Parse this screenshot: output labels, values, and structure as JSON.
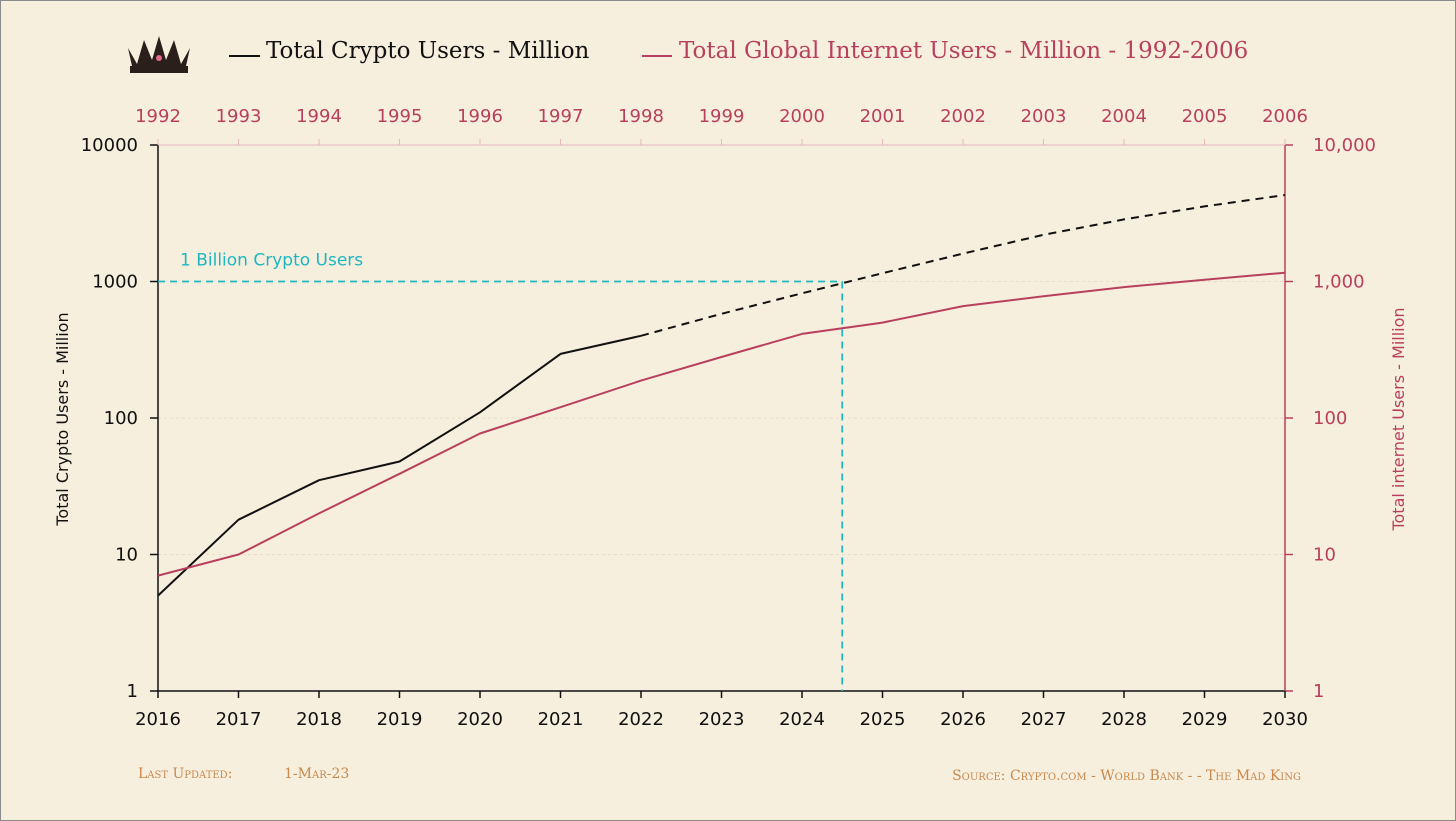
{
  "legend": {
    "crypto_label": "Total Crypto Users - Million",
    "internet_label": "Total Global Internet Users - Million - 1992-2006"
  },
  "footer": {
    "updated_label": "Last Updated:",
    "updated_value": "1-Mar-23",
    "source": "Source: Crypto.com - World Bank -  - The Mad King"
  },
  "annotation": {
    "label": "1 Billion Crypto Users",
    "threshold": 1000,
    "x": 2024.5
  },
  "colors": {
    "crypto": "#111111",
    "internet": "#b8405e",
    "annotation": "#1fb6c1",
    "footer": "#c8884e",
    "background": "#f7efdd"
  },
  "logo": {
    "icon": "crown-icon"
  },
  "chart_data": {
    "type": "line",
    "scale": "log",
    "grid": true,
    "x_bottom": {
      "min": 2016,
      "max": 2030,
      "ticks": [
        "2016",
        "2017",
        "2018",
        "2019",
        "2020",
        "2021",
        "2022",
        "2023",
        "2024",
        "2025",
        "2026",
        "2027",
        "2028",
        "2029",
        "2030"
      ]
    },
    "x_top": {
      "min": 1992,
      "max": 2006,
      "ticks": [
        "1992",
        "1993",
        "1994",
        "1995",
        "1996",
        "1997",
        "1998",
        "1999",
        "2000",
        "2001",
        "2002",
        "2003",
        "2004",
        "2005",
        "2006"
      ]
    },
    "y_left": {
      "label": "Total Crypto Users - Million",
      "ylim": [
        1,
        10000
      ],
      "ticks": [
        "1",
        "10",
        "100",
        "1000",
        "10000"
      ]
    },
    "y_right": {
      "label": "Total internet Users - Million",
      "ylim": [
        1,
        10000
      ],
      "ticks": [
        "1",
        "10",
        "100",
        "1,000",
        "10,000"
      ]
    },
    "series": [
      {
        "name": "Total Crypto Users - Million",
        "axis": "bottom",
        "x": [
          2016,
          2017,
          2018,
          2019,
          2020,
          2021,
          2022
        ],
        "values": [
          5,
          18,
          35,
          48,
          110,
          295,
          400
        ]
      },
      {
        "name": "Total Crypto Users - Million (projected)",
        "axis": "bottom",
        "dashed": true,
        "x": [
          2022,
          2023,
          2024,
          2025,
          2026,
          2027,
          2028,
          2029,
          2030
        ],
        "values": [
          400,
          580,
          820,
          1150,
          1600,
          2200,
          2850,
          3550,
          4300
        ]
      },
      {
        "name": "Total Global Internet Users - Million - 1992-2006",
        "axis": "top",
        "x": [
          1992,
          1993,
          1994,
          1995,
          1996,
          1997,
          1998,
          1999,
          2000,
          2001,
          2002,
          2003,
          2004,
          2005,
          2006
        ],
        "values": [
          7,
          10,
          20,
          39,
          77,
          120,
          188,
          280,
          413,
          500,
          660,
          780,
          910,
          1030,
          1160
        ]
      }
    ]
  }
}
